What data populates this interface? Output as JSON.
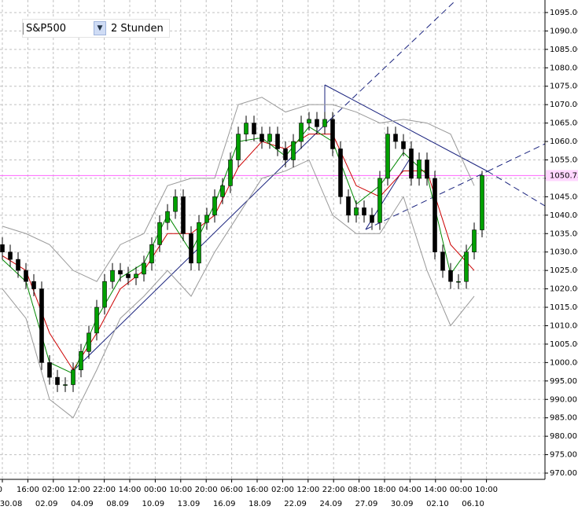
{
  "chart_data": {
    "type": "candlestick",
    "symbol": "S&P500",
    "timeframe": "2 Stunden",
    "open": [
      1032,
      1030,
      1028,
      1025,
      1022,
      1020,
      1000,
      996,
      994,
      994,
      998,
      1003,
      1008,
      1015,
      1022,
      1025,
      1024,
      1023,
      1024,
      1027,
      1032,
      1038,
      1041,
      1045,
      1035,
      1027,
      1038,
      1040,
      1045,
      1048,
      1055,
      1062,
      1065,
      1062,
      1060,
      1062,
      1058,
      1055,
      1060,
      1065,
      1066,
      1064,
      1066,
      1058,
      1045,
      1040,
      1042,
      1040,
      1038,
      1050,
      1062,
      1060,
      1058,
      1050,
      1055,
      1050,
      1030,
      1025,
      1022,
      1022,
      1030,
      1036
    ],
    "high": [
      1034,
      1032,
      1030,
      1027,
      1024,
      1022,
      1002,
      998,
      996,
      1000,
      1005,
      1010,
      1017,
      1024,
      1027,
      1027,
      1026,
      1026,
      1029,
      1034,
      1040,
      1043,
      1047,
      1047,
      1037,
      1040,
      1042,
      1047,
      1050,
      1057,
      1064,
      1067,
      1067,
      1064,
      1064,
      1064,
      1060,
      1062,
      1067,
      1068,
      1068,
      1068,
      1068,
      1060,
      1047,
      1044,
      1044,
      1042,
      1052,
      1064,
      1064,
      1062,
      1060,
      1057,
      1057,
      1052,
      1032,
      1027,
      1024,
      1032,
      1038,
      1052
    ],
    "low": [
      1028,
      1026,
      1023,
      1020,
      1018,
      998,
      994,
      992,
      992,
      992,
      996,
      1001,
      1006,
      1013,
      1020,
      1022,
      1021,
      1021,
      1022,
      1025,
      1030,
      1036,
      1039,
      1033,
      1025,
      1025,
      1036,
      1038,
      1043,
      1046,
      1053,
      1060,
      1060,
      1058,
      1058,
      1056,
      1053,
      1053,
      1058,
      1063,
      1062,
      1062,
      1056,
      1043,
      1038,
      1038,
      1038,
      1036,
      1036,
      1048,
      1058,
      1056,
      1048,
      1048,
      1048,
      1028,
      1023,
      1020,
      1020,
      1020,
      1028,
      1034
    ],
    "close": [
      1030,
      1028,
      1025,
      1022,
      1020,
      1000,
      996,
      994,
      994,
      998,
      1003,
      1008,
      1015,
      1022,
      1025,
      1024,
      1023,
      1024,
      1027,
      1032,
      1038,
      1041,
      1045,
      1035,
      1027,
      1038,
      1040,
      1045,
      1048,
      1055,
      1062,
      1065,
      1062,
      1060,
      1062,
      1058,
      1055,
      1060,
      1065,
      1066,
      1064,
      1066,
      1058,
      1045,
      1040,
      1042,
      1040,
      1038,
      1050,
      1062,
      1060,
      1058,
      1050,
      1055,
      1050,
      1030,
      1025,
      1022,
      1022,
      1030,
      1036,
      1050.75
    ],
    "indicators": [
      {
        "color": "#999999",
        "x": [
          0,
          3,
          6,
          9,
          12,
          15,
          18,
          21,
          24,
          27,
          30,
          33,
          36,
          39,
          42,
          45,
          48,
          51,
          54,
          57,
          60
        ],
        "values": [
          1037,
          1035,
          1032,
          1025,
          1022,
          1032,
          1035,
          1048,
          1050,
          1050,
          1070,
          1072,
          1068,
          1070,
          1070,
          1068,
          1065,
          1066,
          1065,
          1062,
          1048
        ]
      },
      {
        "color": "#999999",
        "x": [
          0,
          3,
          6,
          9,
          12,
          15,
          18,
          21,
          24,
          27,
          30,
          33,
          36,
          39,
          42,
          45,
          48,
          51,
          54,
          57,
          60
        ],
        "values": [
          1020,
          1012,
          990,
          985,
          998,
          1012,
          1018,
          1025,
          1018,
          1030,
          1040,
          1050,
          1052,
          1055,
          1040,
          1035,
          1035,
          1045,
          1025,
          1010,
          1018
        ]
      },
      {
        "color": "#cc0000",
        "x": [
          0,
          3,
          6,
          9,
          12,
          15,
          18,
          21,
          24,
          27,
          30,
          33,
          36,
          39,
          42,
          45,
          48,
          51,
          54,
          57,
          60
        ],
        "values": [
          1029,
          1025,
          1008,
          998,
          1008,
          1020,
          1025,
          1035,
          1035,
          1040,
          1053,
          1060,
          1058,
          1062,
          1062,
          1048,
          1045,
          1052,
          1052,
          1032,
          1025
        ]
      },
      {
        "color": "#008800",
        "x": [
          0,
          3,
          6,
          9,
          12,
          15,
          18,
          21,
          24,
          27,
          30,
          33,
          36,
          39,
          42,
          45,
          48,
          51,
          54,
          57,
          60
        ],
        "values": [
          1028,
          1022,
          1000,
          997,
          1012,
          1023,
          1027,
          1040,
          1030,
          1043,
          1060,
          1061,
          1056,
          1064,
          1060,
          1043,
          1048,
          1057,
          1051,
          1024,
          1033
        ]
      }
    ],
    "last_price": 1050.75,
    "ylim": [
      968.3,
      1098.4
    ],
    "yticks": [
      {
        "value": 970,
        "label": "970.00"
      },
      {
        "value": 975,
        "label": "975.00"
      },
      {
        "value": 980,
        "label": "980.00"
      },
      {
        "value": 985,
        "label": "985.00"
      },
      {
        "value": 990,
        "label": "990.00"
      },
      {
        "value": 995,
        "label": "995.00"
      },
      {
        "value": 1000,
        "label": "1000.00"
      },
      {
        "value": 1005,
        "label": "1005.00"
      },
      {
        "value": 1010,
        "label": "1010.00"
      },
      {
        "value": 1015,
        "label": "1015.00"
      },
      {
        "value": 1020,
        "label": "1020.00"
      },
      {
        "value": 1025,
        "label": "1025.00"
      },
      {
        "value": 1030,
        "label": "1030.00"
      },
      {
        "value": 1035,
        "label": "1035.00"
      },
      {
        "value": 1040,
        "label": "1040.00"
      },
      {
        "value": 1045,
        "label": "1045.00"
      },
      {
        "value": 1050,
        "label": "1050.00"
      },
      {
        "value": 1055,
        "label": "1055.00"
      },
      {
        "value": 1060,
        "label": "1060.00"
      },
      {
        "value": 1065,
        "label": "1065.00"
      },
      {
        "value": 1070,
        "label": "1070.00"
      },
      {
        "value": 1075,
        "label": "1075.00"
      },
      {
        "value": 1080,
        "label": "1080.00"
      },
      {
        "value": 1085,
        "label": "1085.00"
      },
      {
        "value": 1090,
        "label": "1090.00"
      },
      {
        "value": 1095,
        "label": "1095.00"
      }
    ],
    "time_labels": [
      "00",
      "16:00",
      "02:00",
      "12:00",
      "22:00",
      "14:00",
      "00:00",
      "10:00",
      "20:00",
      "06:00",
      "16:00",
      "02:00",
      "12:00",
      "22:00",
      "08:00",
      "18:00",
      "04:00",
      "14:00",
      "00:00",
      "10:00"
    ],
    "date_labels": [
      "30.08",
      "02.09",
      "04.09",
      "08.09",
      "10.09",
      "13.09",
      "16.09",
      "18.09",
      "22.09",
      "24.09",
      "27.09",
      "30.09",
      "02.10",
      "06.10"
    ],
    "grid": true
  }
}
